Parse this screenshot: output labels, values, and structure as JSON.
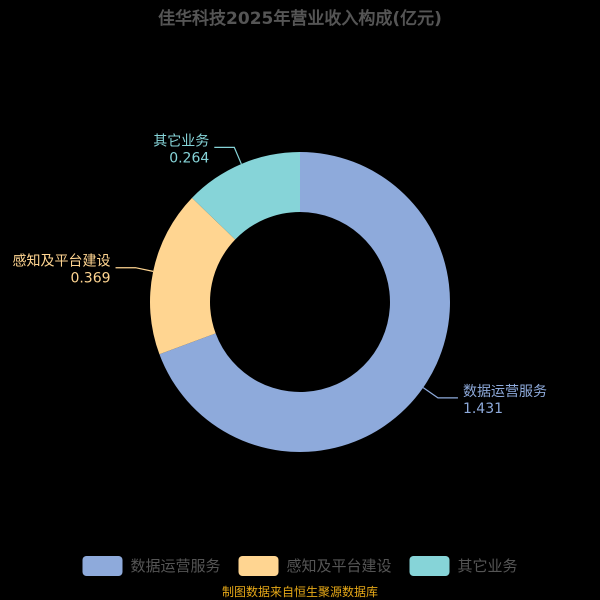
{
  "chart_data": {
    "type": "pie",
    "title": "佳华科技2025年营业收入构成(亿元)",
    "categories": [
      "数据运营服务",
      "感知及平台建设",
      "其它业务"
    ],
    "values": [
      1.431,
      0.369,
      0.264
    ],
    "value_labels": [
      "1.431",
      "0.369",
      "0.264"
    ],
    "colors": [
      "#8eaadb",
      "#ffd591",
      "#86d4d8"
    ],
    "legend_position": "bottom",
    "source": "制图数据来自恒生聚源数据库"
  }
}
